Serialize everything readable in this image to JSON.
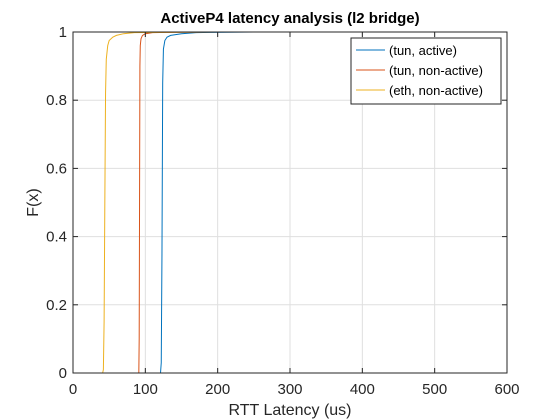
{
  "chart_data": {
    "type": "line",
    "title": "ActiveP4 latency analysis (l2 bridge)",
    "xlabel": "RTT Latency (us)",
    "ylabel": "F(x)",
    "xlim": [
      0,
      600
    ],
    "ylim": [
      0,
      1
    ],
    "xticks": [
      0,
      100,
      200,
      300,
      400,
      500,
      600
    ],
    "yticks": [
      0,
      0.2,
      0.4,
      0.6,
      0.8,
      1
    ],
    "xtick_labels": [
      "0",
      "100",
      "200",
      "300",
      "400",
      "500",
      "600"
    ],
    "ytick_labels": [
      "0",
      "0.2",
      "0.4",
      "0.6",
      "0.8",
      "1"
    ],
    "grid": true,
    "legend_position": "top-right",
    "series": [
      {
        "name": "(tun, active)",
        "color": "#0072BD",
        "x": [
          121,
          122,
          123,
          124,
          125,
          127,
          130,
          135,
          150,
          170,
          190,
          250,
          400,
          500
        ],
        "y": [
          0,
          0.03,
          0.35,
          0.85,
          0.95,
          0.975,
          0.985,
          0.99,
          0.995,
          0.998,
          0.999,
          1,
          1,
          1
        ]
      },
      {
        "name": "(tun, non-active)",
        "color": "#D95319",
        "x": [
          91,
          91.5,
          92,
          92.5,
          93,
          94,
          96,
          100,
          110,
          130,
          200,
          300
        ],
        "y": [
          0,
          0.1,
          0.5,
          0.9,
          0.96,
          0.98,
          0.99,
          0.995,
          0.998,
          0.999,
          1,
          1
        ]
      },
      {
        "name": "(eth, non-active)",
        "color": "#EDB120",
        "x": [
          41,
          42,
          43,
          44,
          45,
          46,
          48,
          50,
          55,
          60,
          70,
          85,
          120,
          200
        ],
        "y": [
          0,
          0.01,
          0.15,
          0.5,
          0.82,
          0.92,
          0.96,
          0.975,
          0.985,
          0.99,
          0.995,
          0.998,
          0.999,
          1
        ]
      }
    ]
  }
}
